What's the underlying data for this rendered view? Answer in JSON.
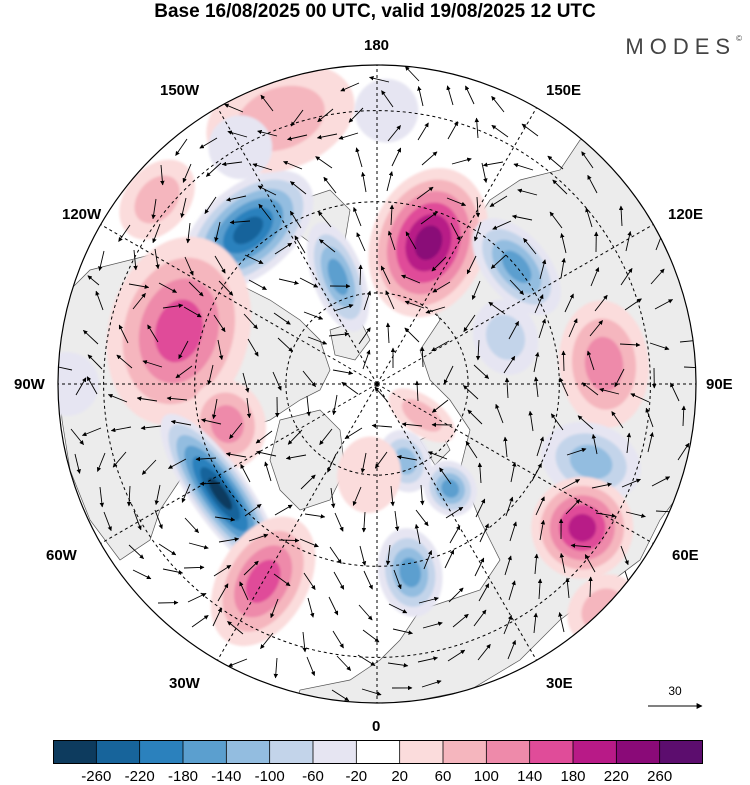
{
  "title": "Base 16/08/2025 00 UTC, valid 19/08/2025 12 UTC",
  "brand": "MODES",
  "brand_mark": "©",
  "longitude_labels": {
    "top": "180",
    "bottom": "0",
    "left": "90W",
    "right": "90E",
    "nw_upper": "150W",
    "nw_lower": "120W",
    "ne_upper": "150E",
    "ne_lower": "120E",
    "sw_upper": "60W",
    "sw_lower": "30W",
    "se_upper": "60E",
    "se_lower": "30E"
  },
  "reference_vector": {
    "label": "30"
  },
  "colorbar": {
    "ticks": [
      "-260",
      "-220",
      "-180",
      "-140",
      "-100",
      "-60",
      "-20",
      "20",
      "60",
      "100",
      "140",
      "180",
      "220",
      "260"
    ],
    "colors": [
      "#0d3b5e",
      "#17649b",
      "#2b81bd",
      "#5b9fcf",
      "#93bde0",
      "#c3d4ea",
      "#e6e5f2",
      "#ffffff",
      "#fbdcdc",
      "#f5b6be",
      "#ee8aaa",
      "#e04c99",
      "#b81a87",
      "#8a0a78",
      "#5c0d6e"
    ]
  },
  "anomalies": [
    {
      "lon": 160,
      "lat": 57,
      "value": 240,
      "rx": 0.09,
      "ry": 0.12
    },
    {
      "lon": -140,
      "lat": 46,
      "value": -240,
      "rx": 0.12,
      "ry": 0.07
    },
    {
      "lon": -160,
      "lat": 65,
      "value": -140,
      "rx": 0.04,
      "ry": 0.09
    },
    {
      "lon": -105,
      "lat": 45,
      "value": 150,
      "rx": 0.15,
      "ry": 0.11
    },
    {
      "lon": -75,
      "lat": 56,
      "value": 110,
      "rx": 0.07,
      "ry": 0.06
    },
    {
      "lon": -160,
      "lat": 28,
      "value": 80,
      "rx": 0.12,
      "ry": 0.08
    },
    {
      "lon": 130,
      "lat": 50,
      "value": -150,
      "rx": 0.09,
      "ry": 0.05
    },
    {
      "lon": 110,
      "lat": 60,
      "value": -60,
      "rx": 0.06,
      "ry": 0.05
    },
    {
      "lon": 95,
      "lat": 40,
      "value": 130,
      "rx": 0.1,
      "ry": 0.07
    },
    {
      "lon": 70,
      "lat": 40,
      "value": -120,
      "rx": 0.06,
      "ry": 0.08
    },
    {
      "lon": 55,
      "lat": 35,
      "value": 180,
      "rx": 0.08,
      "ry": 0.08
    },
    {
      "lon": 35,
      "lat": 62,
      "value": -150,
      "rx": 0.04,
      "ry": 0.045
    },
    {
      "lon": 20,
      "lat": 72,
      "value": -110,
      "rx": 0.04,
      "ry": 0.05
    },
    {
      "lon": 55,
      "lat": 78,
      "value": 90,
      "rx": 0.03,
      "ry": 0.06
    },
    {
      "lon": 10,
      "lat": 48,
      "value": -140,
      "rx": 0.05,
      "ry": 0.07
    },
    {
      "lon": -55,
      "lat": 48,
      "value": -270,
      "rx": 0.15,
      "ry": 0.045
    },
    {
      "lon": -30,
      "lat": 40,
      "value": 170,
      "rx": 0.07,
      "ry": 0.11
    },
    {
      "lon": -5,
      "lat": 70,
      "value": 50,
      "rx": 0.05,
      "ry": 0.06
    },
    {
      "lon": -150,
      "lat": 30,
      "value": -40,
      "rx": 0.05,
      "ry": 0.05
    },
    {
      "lon": -130,
      "lat": 27,
      "value": 60,
      "rx": 0.07,
      "ry": 0.05
    },
    {
      "lon": 178,
      "lat": 30,
      "value": -50,
      "rx": 0.05,
      "ry": 0.05
    },
    {
      "lon": 45,
      "lat": 20,
      "value": 60,
      "rx": 0.06,
      "ry": 0.05
    },
    {
      "lon": -90,
      "lat": 22,
      "value": -50,
      "rx": 0.05,
      "ry": 0.05
    }
  ]
}
